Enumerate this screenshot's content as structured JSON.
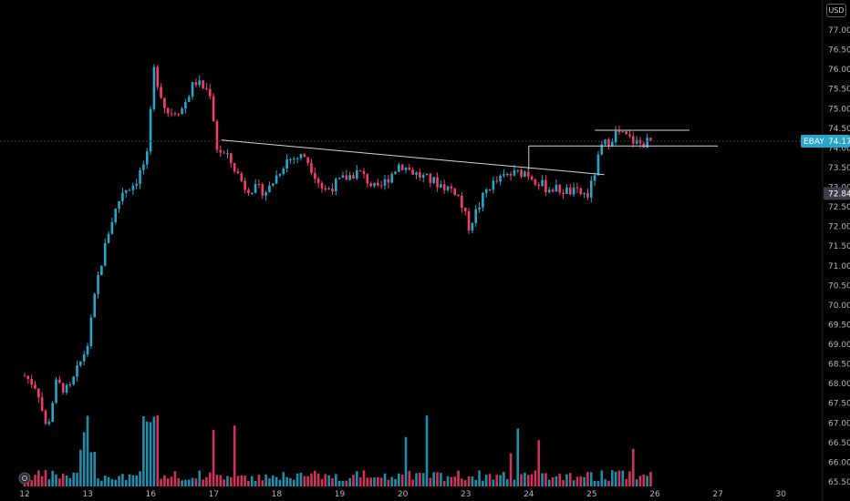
{
  "currency_label": "USD",
  "colors": {
    "background": "#000000",
    "up": "#26a6c8",
    "down": "#f23d6a",
    "trendline": "#d1d4dc",
    "crosshair": "#363a45",
    "last_price_badge": "#26a6c8",
    "prev_close_badge": "#3b3e47",
    "axis_text": "#b2b5be"
  },
  "chart_data": {
    "type": "candlestick",
    "title": "",
    "symbol": "EBAY",
    "xlabel": "",
    "ylabel": "",
    "ylim": [
      65.4,
      77.6
    ],
    "y_ticks": [
      "77.00",
      "76.50",
      "76.00",
      "75.50",
      "75.00",
      "74.50",
      "74.00",
      "73.50",
      "73.00",
      "72.50",
      "72.00",
      "71.50",
      "71.00",
      "70.50",
      "70.00",
      "69.50",
      "69.00",
      "68.50",
      "68.00",
      "67.50",
      "67.00",
      "66.50",
      "66.00",
      "65.50"
    ],
    "x_ticks": [
      "12",
      "13",
      "16",
      "17",
      "18",
      "19",
      "20",
      "23",
      "24",
      "25",
      "26",
      "27",
      "30"
    ],
    "last_price": {
      "label": "EBAY",
      "value": "74.17"
    },
    "prev_close": {
      "value": "72.84"
    },
    "anchors": [
      {
        "day": 0,
        "price": 68.2
      },
      {
        "day": 0.2,
        "price": 67.9
      },
      {
        "day": 0.35,
        "price": 66.8
      },
      {
        "day": 0.5,
        "price": 68.0
      },
      {
        "day": 0.7,
        "price": 67.8
      },
      {
        "day": 0.9,
        "price": 68.6
      },
      {
        "day": 1.0,
        "price": 69.0
      },
      {
        "day": 1.15,
        "price": 70.6
      },
      {
        "day": 1.35,
        "price": 72.0
      },
      {
        "day": 1.55,
        "price": 72.9
      },
      {
        "day": 1.75,
        "price": 73.1
      },
      {
        "day": 1.95,
        "price": 73.8
      },
      {
        "day": 2.05,
        "price": 76.0
      },
      {
        "day": 2.25,
        "price": 74.9
      },
      {
        "day": 2.5,
        "price": 75.0
      },
      {
        "day": 2.7,
        "price": 75.7
      },
      {
        "day": 2.95,
        "price": 75.4
      },
      {
        "day": 3.05,
        "price": 74.0
      },
      {
        "day": 3.25,
        "price": 73.7
      },
      {
        "day": 3.5,
        "price": 73.0
      },
      {
        "day": 3.85,
        "price": 72.9
      },
      {
        "day": 4.15,
        "price": 73.7
      },
      {
        "day": 4.45,
        "price": 73.8
      },
      {
        "day": 4.75,
        "price": 72.9
      },
      {
        "day": 5.05,
        "price": 73.2
      },
      {
        "day": 5.3,
        "price": 73.4
      },
      {
        "day": 5.6,
        "price": 72.9
      },
      {
        "day": 5.95,
        "price": 73.6
      },
      {
        "day": 6.25,
        "price": 73.3
      },
      {
        "day": 6.55,
        "price": 73.1
      },
      {
        "day": 6.85,
        "price": 72.9
      },
      {
        "day": 7.05,
        "price": 72.0
      },
      {
        "day": 7.35,
        "price": 73.0
      },
      {
        "day": 7.65,
        "price": 73.3
      },
      {
        "day": 7.95,
        "price": 73.4
      },
      {
        "day": 8.25,
        "price": 73.0
      },
      {
        "day": 8.6,
        "price": 72.9
      },
      {
        "day": 8.95,
        "price": 72.8
      },
      {
        "day": 9.15,
        "price": 74.0
      },
      {
        "day": 9.4,
        "price": 74.4
      },
      {
        "day": 9.75,
        "price": 74.1
      },
      {
        "day": 9.97,
        "price": 74.17
      }
    ],
    "trendlines": [
      {
        "from": {
          "day": 3.12,
          "price": 74.2
        },
        "to": {
          "day": 9.2,
          "price": 73.32
        }
      },
      {
        "from": {
          "day": 8.0,
          "price": 74.05
        },
        "to": {
          "day": 11.0,
          "price": 74.05
        }
      },
      {
        "from": {
          "day": 9.05,
          "price": 74.45
        },
        "to": {
          "day": 10.55,
          "price": 74.45
        }
      }
    ]
  }
}
